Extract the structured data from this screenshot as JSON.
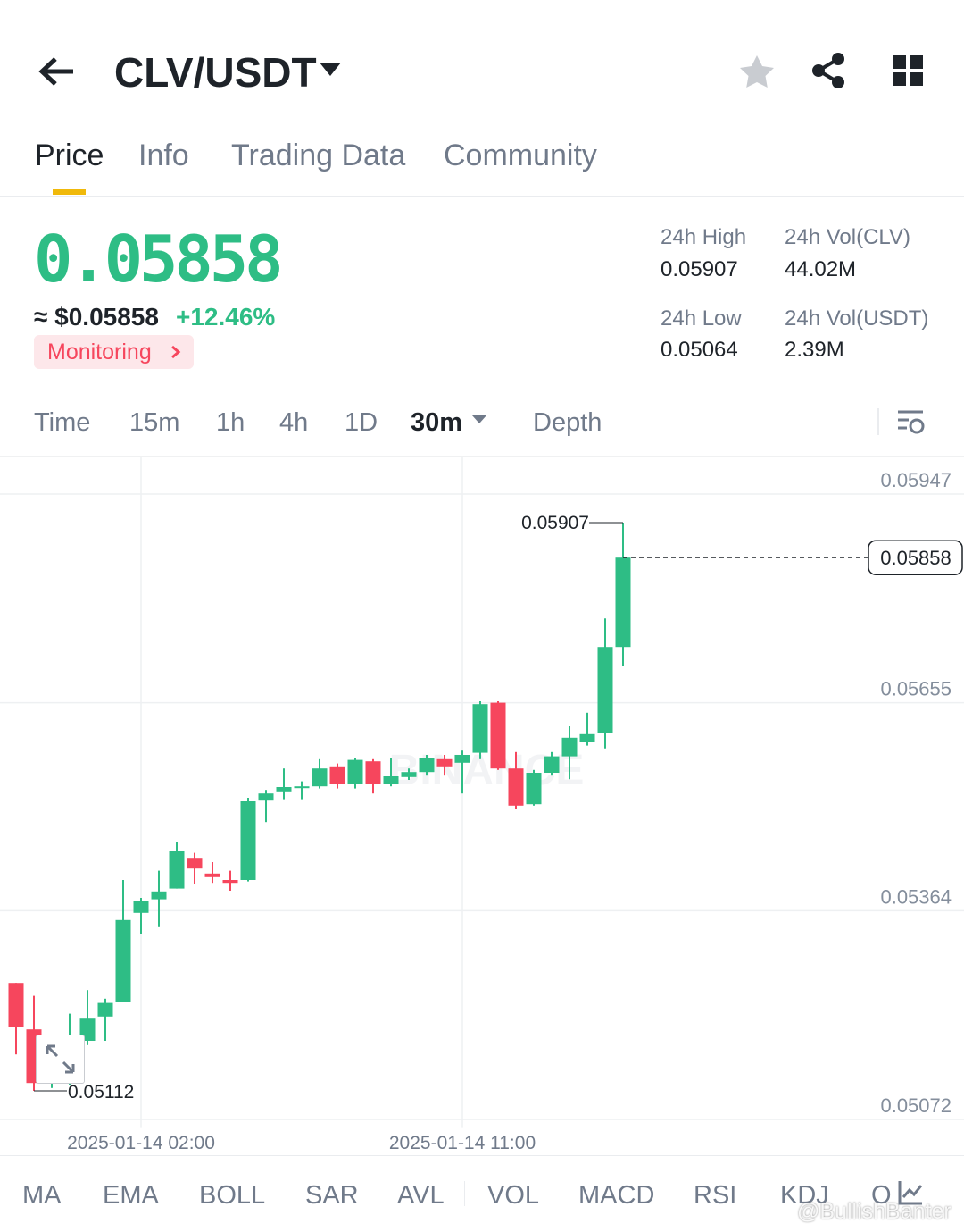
{
  "header": {
    "pair": "CLV/USDT"
  },
  "tabs": [
    "Price",
    "Info",
    "Trading Data",
    "Community"
  ],
  "ticker": {
    "price": "0.05858",
    "usd": "≈ $0.05858",
    "change": "+12.46%",
    "monitoring": "Monitoring"
  },
  "stats": [
    {
      "label": "24h High",
      "value": "0.05907"
    },
    {
      "label": "24h Vol(CLV)",
      "value": "44.02M"
    },
    {
      "label": "24h Low",
      "value": "0.05064"
    },
    {
      "label": "24h Vol(USDT)",
      "value": "2.39M"
    }
  ],
  "intervals": [
    "Time",
    "15m",
    "1h",
    "4h",
    "1D",
    "30m",
    "Depth"
  ],
  "indicators": [
    "MA",
    "EMA",
    "BOLL",
    "SAR",
    "AVL",
    "VOL",
    "MACD",
    "RSI",
    "KDJ",
    "O"
  ],
  "watermark": "@BullishBanter",
  "chart_data": {
    "type": "candlestick",
    "watermark": "BINANCE",
    "categories": [
      null,
      null,
      null,
      null,
      null,
      null,
      null,
      "2025-01-14 02:00",
      null,
      null,
      null,
      null,
      null,
      null,
      null,
      null,
      null,
      null,
      null,
      null,
      null,
      null,
      null,
      null,
      null,
      "2025-01-14 11:00",
      null,
      null,
      null,
      null,
      null,
      null,
      null,
      null,
      null
    ],
    "open": [
      0.05263,
      0.05198,
      0.05123,
      0.05138,
      0.05182,
      0.05216,
      0.05236,
      0.05361,
      0.0538,
      0.05395,
      0.05438,
      0.05416,
      0.05407,
      0.05407,
      0.05518,
      0.05531,
      0.05536,
      0.05538,
      0.05566,
      0.05542,
      0.05573,
      0.05542,
      0.05551,
      0.05558,
      0.05576,
      0.05571,
      0.05585,
      0.05655,
      0.05563,
      0.05513,
      0.05557,
      0.0558,
      0.056,
      0.05613,
      0.05733
    ],
    "high": [
      0.05263,
      0.05245,
      0.05145,
      0.0522,
      0.05253,
      0.05241,
      0.05407,
      0.05382,
      0.0542,
      0.0546,
      0.05445,
      0.05432,
      0.0542,
      0.05522,
      0.05533,
      0.05563,
      0.05545,
      0.05576,
      0.0557,
      0.05578,
      0.05576,
      0.05578,
      0.05563,
      0.05582,
      0.05582,
      0.05588,
      0.05657,
      0.05657,
      0.05586,
      0.05561,
      0.05586,
      0.05622,
      0.05641,
      0.05773,
      0.05907
    ],
    "low": [
      0.05163,
      0.05112,
      0.05116,
      0.0512,
      0.05176,
      0.05182,
      0.05236,
      0.05332,
      0.05341,
      0.05395,
      0.05401,
      0.05403,
      0.05392,
      0.05405,
      0.05488,
      0.0552,
      0.0552,
      0.05535,
      0.05535,
      0.05535,
      0.05528,
      0.05538,
      0.05547,
      0.05553,
      0.05553,
      0.05528,
      0.05576,
      0.05561,
      0.05507,
      0.05511,
      0.05553,
      0.05548,
      0.05595,
      0.05591,
      0.05707
    ],
    "close": [
      0.05201,
      0.05123,
      0.05132,
      0.05182,
      0.05213,
      0.05235,
      0.05351,
      0.05378,
      0.05391,
      0.05448,
      0.05423,
      0.05411,
      0.05403,
      0.05517,
      0.05528,
      0.05537,
      0.05538,
      0.05563,
      0.05542,
      0.05575,
      0.05541,
      0.05552,
      0.05558,
      0.05577,
      0.05566,
      0.05582,
      0.05653,
      0.05563,
      0.05511,
      0.05557,
      0.0558,
      0.05606,
      0.05611,
      0.05733,
      0.05858
    ],
    "up_color": "#2ebd85",
    "down_color": "#f6465d",
    "ylim": [
      0.0506,
      0.06
    ],
    "yticks": [
      0.05947,
      0.05655,
      0.05364,
      0.05072
    ],
    "grid": true
  }
}
